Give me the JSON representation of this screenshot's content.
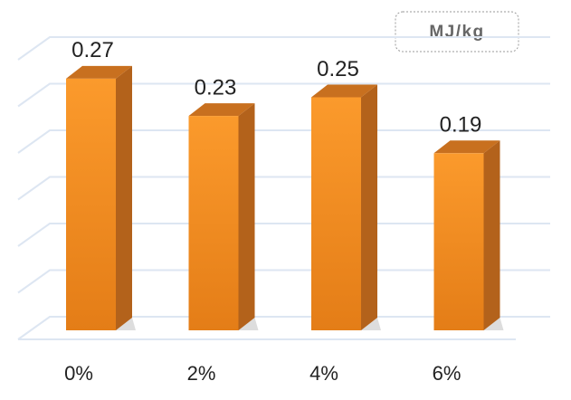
{
  "chart_data": {
    "type": "bar3d",
    "unit_label": "MJ/kg",
    "categories": [
      "0%",
      "2%",
      "4%",
      "6%"
    ],
    "values": [
      0.27,
      0.23,
      0.25,
      0.19
    ],
    "color": "#f7931e",
    "ylim": [
      0,
      0.3
    ],
    "yticks": [
      0,
      0.05,
      0.1,
      0.15,
      0.2,
      0.25,
      0.3
    ],
    "grid": true
  }
}
